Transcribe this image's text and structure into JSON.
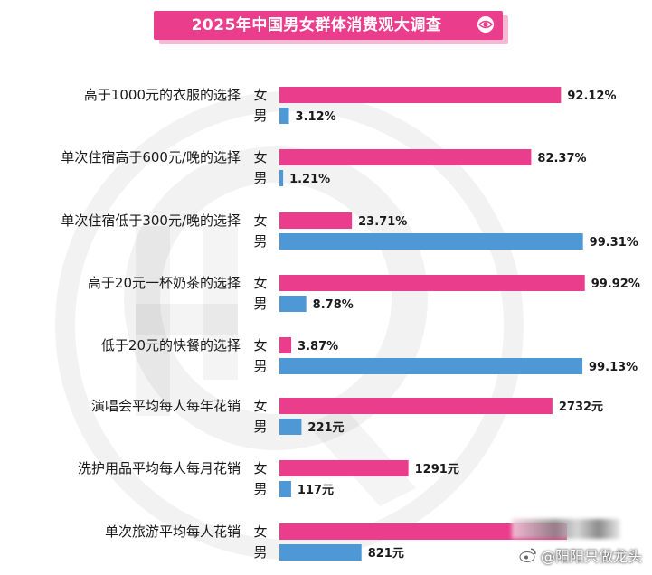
{
  "header": {
    "title": "2025年中国男女群体消费观大调查"
  },
  "watermark": {
    "credit": "@阳阳只做龙头"
  },
  "chart_data": {
    "type": "bar",
    "orientation": "horizontal",
    "grouped": true,
    "series": [
      {
        "name": "女",
        "color": "#ea3d8c"
      },
      {
        "name": "男",
        "color": "#4f98d6"
      }
    ],
    "groups": [
      {
        "label": "高于1000元的衣服的选择",
        "unit": "percent",
        "values": [
          92.12,
          3.12
        ],
        "labels": [
          "92.12%",
          "3.12%"
        ]
      },
      {
        "label": "单次住宿高于600元/晚的选择",
        "unit": "percent",
        "values": [
          82.37,
          1.21
        ],
        "labels": [
          "82.37%",
          "1.21%"
        ]
      },
      {
        "label": "单次住宿低于300元/晚的选择",
        "unit": "percent",
        "values": [
          23.71,
          99.31
        ],
        "labels": [
          "23.71%",
          "99.31%"
        ]
      },
      {
        "label": "高于20元一杯奶茶的选择",
        "unit": "percent",
        "values": [
          99.92,
          8.78
        ],
        "labels": [
          "99.92%",
          "8.78%"
        ]
      },
      {
        "label": "低于20元的快餐的选择",
        "unit": "percent",
        "values": [
          3.87,
          99.13
        ],
        "labels": [
          "3.87%",
          "99.13%"
        ]
      },
      {
        "label": "演唱会平均每人每年花销",
        "unit": "元",
        "values": [
          2732,
          221
        ],
        "labels": [
          "2732元",
          "221元"
        ]
      },
      {
        "label": "洗护用品平均每人每月花销",
        "unit": "元",
        "values": [
          1291,
          117
        ],
        "labels": [
          "1291元",
          "117元"
        ]
      },
      {
        "label": "单次旅游平均每人花销",
        "unit": "元",
        "values": [
          null,
          821
        ],
        "labels": [
          "",
          "821元"
        ]
      }
    ]
  }
}
